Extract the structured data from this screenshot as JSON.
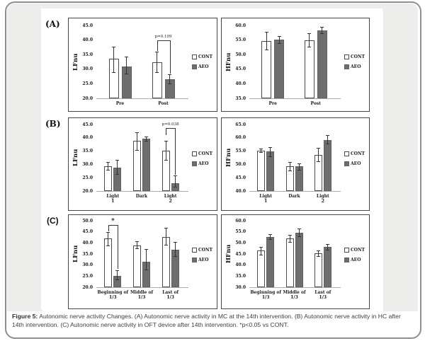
{
  "caption": {
    "bold": "Figure 5:",
    "text": " Autonomic nerve activity Changes. (A) Autonomic nerve activity in MC at the 14th intervention. (B) Autonomic nerve activity in HC after 14th intervention. (C) Autonomic nerve activity in OFT device after 14th intervention. *p<0.05 vs CONT."
  },
  "panels": [
    {
      "label": "(A)"
    },
    {
      "label": "(B)"
    },
    {
      "label": "(C)"
    }
  ],
  "legend": {
    "cont": "CONT",
    "aeo": "AEO"
  },
  "colors": {
    "cont_fill": "#ffffff",
    "aeo_fill": "#6e6e6e",
    "bar_border": "#4a4a4a",
    "axis_line": "#ababab",
    "frame_border": "#8f8f8f"
  },
  "chart_data": [
    {
      "type": "bar",
      "panel": "A",
      "ylabel": "LFnu",
      "ylim": [
        20,
        45
      ],
      "ystep": 5,
      "categories": [
        [
          "Pre"
        ],
        [
          "Post"
        ]
      ],
      "series": [
        {
          "name": "CONT",
          "values": [
            33.5,
            32.5
          ],
          "err_lo": [
            29.0,
            29.0
          ],
          "err_hi": [
            37.8,
            36.0
          ]
        },
        {
          "name": "AEO",
          "values": [
            31.0,
            26.5
          ],
          "err_lo": [
            28.5,
            25.0
          ],
          "err_hi": [
            34.2,
            28.3
          ]
        }
      ],
      "annotation": {
        "label": "p=0.109",
        "group": 1,
        "line": 40.0,
        "left_to": 36.3,
        "right_to": 28.6
      }
    },
    {
      "type": "bar",
      "panel": "A",
      "ylabel": "HFnu",
      "ylim": [
        35,
        60
      ],
      "ystep": 5,
      "categories": [
        [
          "Pre"
        ],
        [
          "Post"
        ]
      ],
      "series": [
        {
          "name": "CONT",
          "values": [
            54.7,
            55.0
          ],
          "err_lo": [
            51.8,
            52.8
          ],
          "err_hi": [
            57.7,
            57.4
          ]
        },
        {
          "name": "AEO",
          "values": [
            55.2,
            58.4
          ],
          "err_lo": [
            54.0,
            57.4
          ],
          "err_hi": [
            56.4,
            59.4
          ]
        }
      ]
    },
    {
      "type": "bar",
      "panel": "B",
      "ylabel": "LFnu",
      "ylim": [
        20,
        45
      ],
      "ystep": 5,
      "categories": [
        [
          "Light",
          "1"
        ],
        [
          "Dark"
        ],
        [
          "Light",
          "2"
        ]
      ],
      "series": [
        {
          "name": "CONT",
          "values": [
            29.2,
            38.8,
            35.2
          ],
          "err_lo": [
            28.0,
            35.5,
            31.8
          ],
          "err_hi": [
            30.8,
            42.2,
            38.8
          ]
        },
        {
          "name": "AEO",
          "values": [
            28.7,
            39.7,
            23.0
          ],
          "err_lo": [
            26.5,
            38.8,
            21.5
          ],
          "err_hi": [
            31.7,
            40.6,
            25.8
          ]
        }
      ],
      "annotation": {
        "label": "p=0.038",
        "group": 2,
        "line": 43.6,
        "left_to": 40.9,
        "right_to": 26.0
      }
    },
    {
      "type": "bar",
      "panel": "B",
      "ylabel": "HFnu",
      "ylim": [
        40,
        65
      ],
      "ystep": 5,
      "categories": [
        [
          "Light",
          "1"
        ],
        [
          "Dark"
        ],
        [
          "Light",
          "2"
        ]
      ],
      "series": [
        {
          "name": "CONT",
          "values": [
            55.2,
            49.2,
            53.5
          ],
          "err_lo": [
            54.5,
            47.6,
            51.2
          ],
          "err_hi": [
            55.9,
            50.8,
            56.3
          ]
        },
        {
          "name": "AEO",
          "values": [
            54.8,
            49.3,
            59.2
          ],
          "err_lo": [
            53.0,
            48.1,
            57.7
          ],
          "err_hi": [
            56.5,
            50.4,
            61.0
          ]
        }
      ]
    },
    {
      "type": "bar",
      "panel": "C",
      "ylabel": "LFnu",
      "ylim": [
        20,
        50
      ],
      "ystep": 5,
      "categories": [
        [
          "Beginning of",
          "1/3"
        ],
        [
          "Middle of",
          "1/3"
        ],
        [
          "Last of",
          "1/3"
        ]
      ],
      "series": [
        {
          "name": "CONT",
          "values": [
            42.0,
            38.8,
            42.8
          ],
          "err_lo": [
            38.8,
            37.5,
            39.0
          ],
          "err_hi": [
            45.0,
            40.6,
            46.8
          ]
        },
        {
          "name": "AEO",
          "values": [
            25.2,
            31.5,
            37.0
          ],
          "err_lo": [
            23.5,
            28.0,
            34.0
          ],
          "err_hi": [
            27.8,
            37.2,
            40.5
          ]
        }
      ],
      "annotation": {
        "label": "*",
        "group": 0,
        "line": 48.0,
        "left_to": 45.3,
        "right_to": 28.2
      }
    },
    {
      "type": "bar",
      "panel": "C",
      "ylabel": "HFnu",
      "ylim": [
        30,
        60
      ],
      "ystep": 5,
      "categories": [
        [
          "Beginning of",
          "1/3"
        ],
        [
          "Middle of",
          "1/3"
        ],
        [
          "Last of",
          "1/3"
        ]
      ],
      "series": [
        {
          "name": "CONT",
          "values": [
            46.5,
            52.0,
            45.2
          ],
          "err_lo": [
            44.8,
            50.3,
            44.0
          ],
          "err_hi": [
            48.3,
            53.6,
            46.6
          ]
        },
        {
          "name": "AEO",
          "values": [
            52.8,
            54.5,
            48.2
          ],
          "err_lo": [
            51.8,
            53.0,
            47.0
          ],
          "err_hi": [
            54.0,
            56.6,
            49.6
          ]
        }
      ]
    }
  ]
}
